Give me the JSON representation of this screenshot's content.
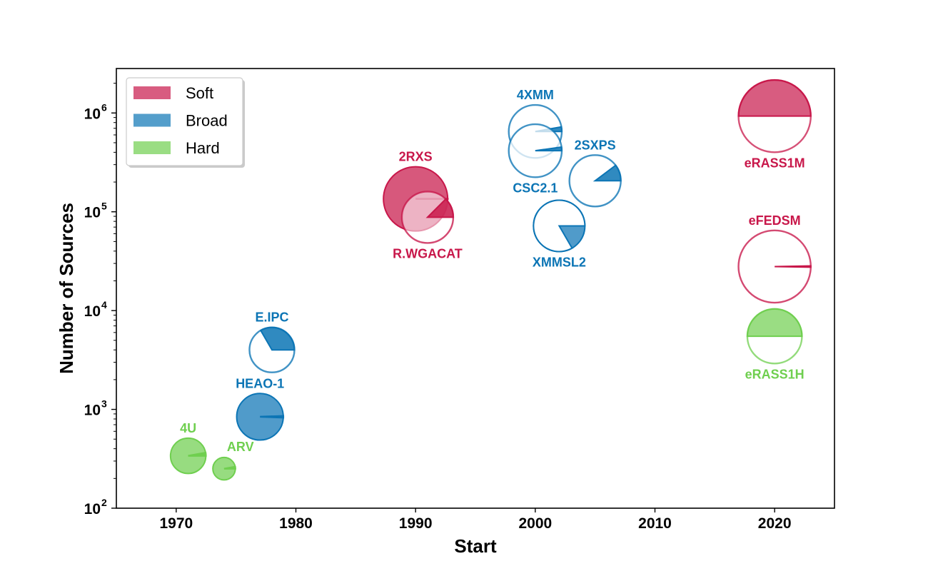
{
  "chart_data": {
    "type": "scatter",
    "xlabel": "Start",
    "ylabel": "Number of Sources",
    "xlim": [
      1965,
      2025
    ],
    "ylim_log10": [
      2,
      6.45
    ],
    "xticks": [
      1970,
      1980,
      1990,
      2000,
      2010,
      2020
    ],
    "xtick_labels": [
      "1970",
      "1980",
      "1990",
      "2000",
      "2010",
      "2020"
    ],
    "yticks": [
      2,
      3,
      4,
      5,
      6
    ],
    "ytick_labels": [
      "10",
      "10",
      "10",
      "10",
      "10"
    ],
    "ytick_exponents": [
      "2",
      "3",
      "4",
      "5",
      "6"
    ],
    "legend": {
      "location": "upper left",
      "entries": [
        {
          "label": "Soft",
          "band": "soft"
        },
        {
          "label": "Broad",
          "band": "broad"
        },
        {
          "label": "Hard",
          "band": "hard"
        }
      ]
    },
    "colors": {
      "soft": "#c8174a",
      "broad": "#0c75b5",
      "hard": "#6fcf4f"
    },
    "catalogs": [
      {
        "name": "4U",
        "band": "hard",
        "start": 1971,
        "sources": 339,
        "size": 1.1,
        "wedge": [
          0,
          10
        ],
        "style": "filled",
        "label_pos": "above"
      },
      {
        "name": "ARV",
        "band": "hard",
        "start": 1974,
        "sources": 251,
        "size": 0.7,
        "wedge": [
          0,
          10
        ],
        "style": "filled",
        "label_pos": "above-right"
      },
      {
        "name": "HEAO-1",
        "band": "broad",
        "start": 1977,
        "sources": 842,
        "size": 1.45,
        "wedge": [
          -2,
          2
        ],
        "style": "filled",
        "label_pos": "above"
      },
      {
        "name": "E.IPC",
        "band": "broad",
        "start": 1978,
        "sources": 4000,
        "size": 1.4,
        "wedge": [
          0,
          120
        ],
        "style": "outline",
        "label_pos": "above"
      },
      {
        "name": "2RXS",
        "band": "soft",
        "start": 1990,
        "sources": 135000,
        "size": 2.0,
        "wedge": [
          0,
          0
        ],
        "style": "filled",
        "label_pos": "above"
      },
      {
        "name": "R.WGACAT",
        "band": "soft",
        "start": 1991,
        "sources": 88000,
        "size": 1.6,
        "wedge": [
          0,
          45
        ],
        "style": "outline",
        "label_pos": "below"
      },
      {
        "name": "4XMM",
        "band": "broad",
        "start": 2000,
        "sources": 650000,
        "size": 1.65,
        "wedge": [
          0,
          10
        ],
        "style": "outline",
        "label_pos": "above"
      },
      {
        "name": "CSC2.1",
        "band": "broad",
        "start": 2000,
        "sources": 415000,
        "size": 1.65,
        "wedge": [
          0,
          8
        ],
        "style": "outline",
        "label_pos": "below"
      },
      {
        "name": "2SXPS",
        "band": "broad",
        "start": 2005,
        "sources": 206000,
        "size": 1.6,
        "wedge": [
          0,
          37
        ],
        "style": "outline",
        "label_pos": "above"
      },
      {
        "name": "XMMSL2",
        "band": "broad",
        "start": 2002,
        "sources": 72000,
        "size": 1.6,
        "wedge": [
          0,
          300
        ],
        "style": "filled",
        "label_pos": "below"
      },
      {
        "name": "eRASS1M",
        "band": "soft",
        "start": 2020,
        "sources": 930000,
        "size": 2.25,
        "wedge": [
          0,
          180
        ],
        "style": "half",
        "label_pos": "below"
      },
      {
        "name": "eFEDSM",
        "band": "soft",
        "start": 2020,
        "sources": 27900,
        "size": 2.25,
        "wedge": [
          -1,
          1
        ],
        "style": "outline",
        "label_pos": "above"
      },
      {
        "name": "eRASS1H",
        "band": "hard",
        "start": 2020,
        "sources": 5500,
        "size": 1.7,
        "wedge": [
          0,
          180
        ],
        "style": "half",
        "label_pos": "below"
      }
    ]
  }
}
